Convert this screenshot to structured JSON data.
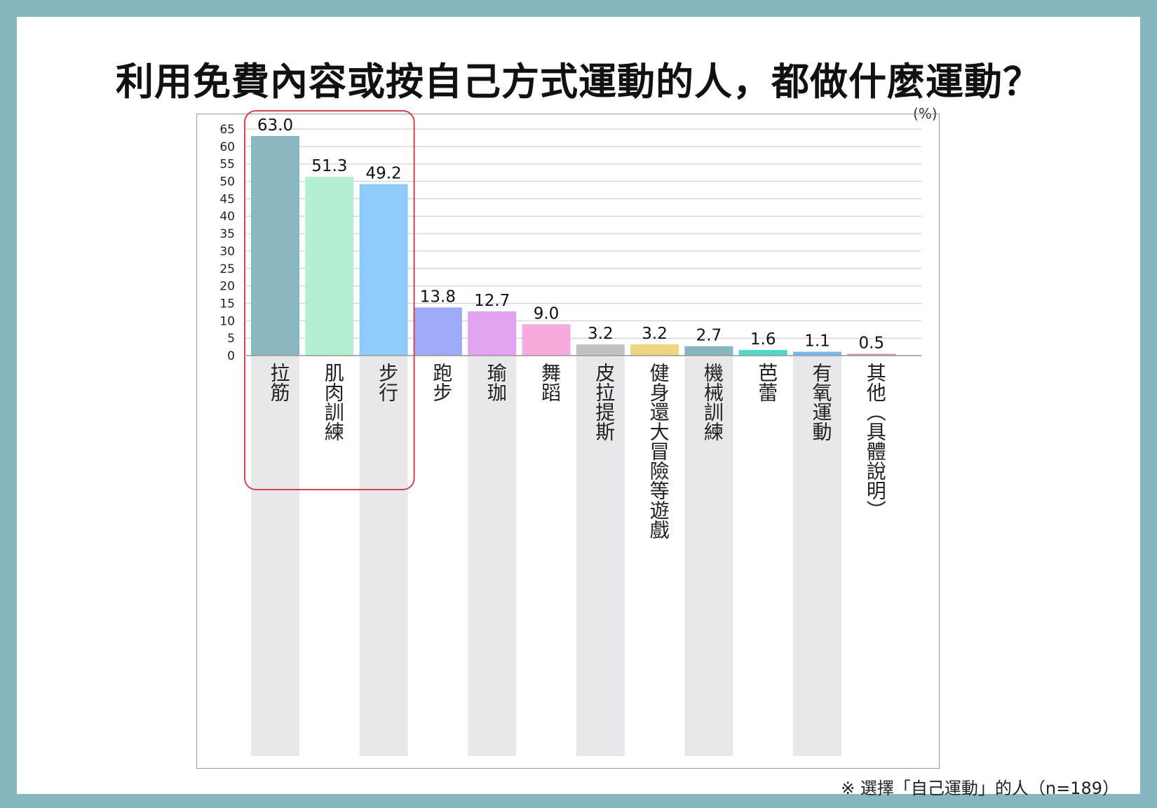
{
  "title": "利用免費內容或按自己方式運動的人，都做什麼運動？",
  "unit": "(%)",
  "note": "※ 選擇「自己運動」的人（n=189）",
  "colors": {
    "background_border": "#86b6bf",
    "highlight_box": "#d9414e",
    "column_shade": "#e8e8ea",
    "gridline": "#cfcfcf"
  },
  "chart_data": {
    "type": "bar",
    "categories": [
      "拉筋",
      "肌肉訓練",
      "步行",
      "跑步",
      "瑜珈",
      "舞蹈",
      "皮拉提斯",
      "健身還大冒險等遊戲",
      "機械訓練",
      "芭蕾",
      "有氧運動",
      "其他（具體說明）"
    ],
    "values": [
      63.0,
      51.3,
      49.2,
      13.8,
      12.7,
      9.0,
      3.2,
      3.2,
      2.7,
      1.6,
      1.1,
      0.5
    ],
    "value_labels": [
      "63.0",
      "51.3",
      "49.2",
      "13.8",
      "12.7",
      "9.0",
      "3.2",
      "3.2",
      "2.7",
      "1.6",
      "1.1",
      "0.5"
    ],
    "bar_colors": [
      "#88b7c0",
      "#b4efd0",
      "#8dcbfb",
      "#9eaaf8",
      "#e2a3ef",
      "#f8a9de",
      "#bfc1c3",
      "#ecd57e",
      "#86b6bf",
      "#4bd8c8",
      "#73b5f1",
      "#d990ab"
    ],
    "ylim": [
      0,
      65
    ],
    "yticks": [
      0,
      5,
      10,
      15,
      20,
      25,
      30,
      35,
      40,
      45,
      50,
      55,
      60,
      65
    ],
    "grid": true,
    "highlighted_categories": [
      "拉筋",
      "肌肉訓練",
      "步行"
    ]
  }
}
